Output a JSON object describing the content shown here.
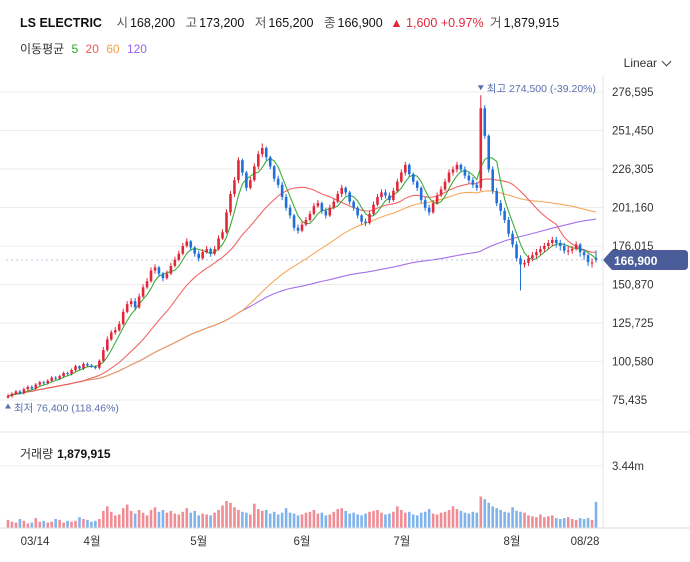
{
  "header": {
    "name": "LS ELECTRIC",
    "open_label": "시",
    "open": "168,200",
    "high_label": "고",
    "high": "173,200",
    "low_label": "저",
    "low": "165,200",
    "close_label": "종",
    "close": "166,900",
    "change": "1,600",
    "change_pct": "+0.97%",
    "volume_label": "거",
    "volume": "1,879,915"
  },
  "ma_legend": {
    "label": "이동평균",
    "items": [
      {
        "period": "5",
        "color": "#27a527"
      },
      {
        "period": "20",
        "color": "#ef5757"
      },
      {
        "period": "60",
        "color": "#f5a04a"
      },
      {
        "period": "120",
        "color": "#9a62e8"
      }
    ]
  },
  "scale_button": "Linear",
  "volume_panel": {
    "title": "거래량",
    "value": "1,879,915",
    "axis_max": "3.44m"
  },
  "colors": {
    "up": "#e0283b",
    "down": "#1e6fd9",
    "up_volume": "#f08c94",
    "down_volume": "#7fb3ec",
    "last_price_bg": "#4a5d9a"
  },
  "chart_data": {
    "type": "candlestick",
    "y_ticks": [
      276595,
      251450,
      226305,
      201160,
      176015,
      150870,
      125725,
      100580,
      75435
    ],
    "y_tick_labels": [
      "276,595",
      "251,450",
      "226,305",
      "201,160",
      "176,015",
      "150,870",
      "125,725",
      "100,580",
      "75,435"
    ],
    "x_labels": [
      "03/14",
      "4월",
      "5월",
      "6월",
      "7월",
      "8월",
      "08/28"
    ],
    "last_price": 166900,
    "last_price_label": "166,900",
    "max_annotation": "최고 274,500 (-39.20%)",
    "min_annotation": "최저 76,400 (118.46%)",
    "max_value": 274500,
    "min_value": 76400,
    "closes": [
      78000,
      79500,
      81000,
      80000,
      82500,
      84000,
      83000,
      85500,
      87000,
      86500,
      88000,
      90000,
      89500,
      91000,
      93000,
      92500,
      95000,
      97500,
      96000,
      99000,
      98000,
      97000,
      96500,
      101000,
      108000,
      115000,
      119500,
      121000,
      125000,
      133000,
      138000,
      140000,
      136000,
      143000,
      149000,
      153000,
      160000,
      162000,
      158000,
      155000,
      158000,
      163000,
      167000,
      171000,
      176000,
      179000,
      175000,
      171000,
      168000,
      172000,
      174000,
      171000,
      174000,
      181000,
      185000,
      198000,
      210000,
      219000,
      232000,
      224000,
      214000,
      219000,
      228000,
      236000,
      240000,
      234000,
      228000,
      220000,
      216000,
      208000,
      201000,
      196000,
      188000,
      186000,
      190000,
      193000,
      197000,
      202000,
      204000,
      199000,
      196000,
      201000,
      205000,
      210000,
      214000,
      211000,
      205000,
      201000,
      196000,
      192000,
      191000,
      197000,
      203000,
      208000,
      211000,
      209000,
      206000,
      212000,
      218000,
      224000,
      229000,
      223000,
      218000,
      214000,
      206000,
      201000,
      198000,
      204000,
      209000,
      213000,
      218000,
      224000,
      226000,
      229000,
      226000,
      222000,
      219000,
      216000,
      214000,
      266000,
      248000,
      226000,
      212000,
      204000,
      199000,
      193000,
      184000,
      177000,
      168000,
      164000,
      165000,
      168000,
      170000,
      172000,
      174000,
      176000,
      178000,
      180000,
      178000,
      176000,
      173000,
      173000,
      174000,
      177000,
      172000,
      170000,
      165500,
      165300,
      166900
    ],
    "opens": [
      77000,
      78000,
      79500,
      81000,
      80000,
      82500,
      84000,
      83000,
      85500,
      87000,
      86500,
      88000,
      90000,
      89500,
      91000,
      93000,
      92500,
      95000,
      97500,
      96000,
      99000,
      98000,
      97000,
      96500,
      101000,
      108000,
      115000,
      119500,
      121000,
      125000,
      133000,
      138000,
      140000,
      136000,
      143000,
      149000,
      153000,
      160000,
      162000,
      158000,
      155000,
      158000,
      163000,
      167000,
      171000,
      176000,
      179000,
      175000,
      171000,
      168000,
      172000,
      174000,
      171000,
      174000,
      181000,
      185000,
      198000,
      210000,
      219000,
      232000,
      224000,
      214000,
      219000,
      228000,
      236000,
      240000,
      234000,
      228000,
      220000,
      216000,
      208000,
      201000,
      196000,
      188000,
      186000,
      190000,
      193000,
      197000,
      202000,
      204000,
      199000,
      196000,
      201000,
      205000,
      210000,
      214000,
      211000,
      205000,
      201000,
      196000,
      192000,
      191000,
      197000,
      203000,
      208000,
      211000,
      209000,
      206000,
      212000,
      218000,
      224000,
      229000,
      223000,
      218000,
      214000,
      206000,
      201000,
      198000,
      204000,
      209000,
      213000,
      218000,
      224000,
      226000,
      229000,
      226000,
      222000,
      219000,
      216000,
      214000,
      266000,
      248000,
      226000,
      212000,
      204000,
      199000,
      193000,
      184000,
      177000,
      168000,
      164000,
      165000,
      168000,
      170000,
      172000,
      174000,
      176000,
      178000,
      180000,
      178000,
      176000,
      173000,
      173000,
      174000,
      177000,
      172000,
      170000,
      165300,
      168200
    ],
    "highs": [
      79500,
      80500,
      82000,
      82000,
      83500,
      85000,
      85000,
      86500,
      88000,
      88000,
      89000,
      91000,
      91000,
      92000,
      94000,
      94000,
      96000,
      98500,
      98000,
      100000,
      100000,
      99000,
      98000,
      102000,
      110000,
      117000,
      121000,
      123000,
      127000,
      135000,
      140000,
      142000,
      142000,
      145000,
      151000,
      155000,
      162000,
      164000,
      163000,
      159000,
      160000,
      165000,
      169000,
      173000,
      178000,
      181000,
      180000,
      176000,
      173000,
      174000,
      176000,
      175000,
      176000,
      183000,
      187000,
      200000,
      212000,
      221000,
      234000,
      233000,
      225000,
      221000,
      230000,
      238000,
      243000,
      241000,
      235000,
      229000,
      222000,
      218000,
      210000,
      203000,
      197000,
      190000,
      192000,
      195000,
      199000,
      204000,
      206000,
      205000,
      201000,
      203000,
      207000,
      212000,
      216000,
      215000,
      212000,
      206000,
      202000,
      197000,
      194000,
      199000,
      205000,
      210000,
      213000,
      213000,
      211000,
      214000,
      220000,
      226000,
      231000,
      230000,
      224000,
      219000,
      215000,
      208000,
      203000,
      206000,
      211000,
      215000,
      220000,
      226000,
      228000,
      231000,
      230000,
      228000,
      224000,
      221000,
      218000,
      274500,
      268000,
      249000,
      228000,
      214000,
      206000,
      201000,
      195000,
      186000,
      179000,
      170000,
      167000,
      170000,
      172000,
      174000,
      176000,
      178000,
      180000,
      182000,
      182000,
      180000,
      178000,
      176000,
      176000,
      179000,
      178000,
      174000,
      171000,
      168000,
      173200
    ],
    "lows": [
      76400,
      77000,
      78500,
      79000,
      79000,
      81500,
      82000,
      82000,
      84500,
      85500,
      85500,
      87000,
      88500,
      88500,
      90000,
      91500,
      91500,
      94000,
      95000,
      95000,
      97000,
      96500,
      95500,
      95500,
      100000,
      107000,
      114000,
      118000,
      120000,
      124000,
      132000,
      136000,
      134000,
      135000,
      142000,
      148000,
      152000,
      158000,
      156000,
      153000,
      154000,
      157000,
      162000,
      166000,
      170000,
      175000,
      173000,
      169000,
      166000,
      167000,
      171000,
      169000,
      170000,
      173000,
      180000,
      184000,
      196000,
      208000,
      217000,
      222000,
      212000,
      213000,
      218000,
      226000,
      234000,
      232000,
      226000,
      218000,
      214000,
      206000,
      199000,
      194000,
      186000,
      184000,
      185000,
      189000,
      192000,
      196000,
      201000,
      197000,
      194000,
      195000,
      200000,
      204000,
      208000,
      209000,
      203000,
      199000,
      194000,
      190000,
      189000,
      190000,
      196000,
      202000,
      206000,
      207000,
      204000,
      205000,
      211000,
      217000,
      222000,
      221000,
      216000,
      212000,
      204000,
      199000,
      196000,
      197000,
      203000,
      208000,
      212000,
      217000,
      222000,
      224000,
      224000,
      220000,
      217000,
      214000,
      212000,
      212000,
      246000,
      224000,
      210000,
      202000,
      196000,
      191000,
      182000,
      175000,
      166000,
      147000,
      162000,
      163000,
      166000,
      168000,
      170000,
      172000,
      174000,
      176000,
      175000,
      173000,
      171000,
      170000,
      171000,
      173000,
      169000,
      167000,
      163000,
      162000,
      165200
    ],
    "volumes": [
      0.45,
      0.35,
      0.3,
      0.5,
      0.4,
      0.25,
      0.3,
      0.55,
      0.35,
      0.4,
      0.3,
      0.35,
      0.5,
      0.45,
      0.3,
      0.4,
      0.35,
      0.4,
      0.6,
      0.5,
      0.45,
      0.35,
      0.4,
      0.5,
      0.95,
      1.2,
      0.9,
      0.7,
      0.75,
      1.1,
      1.3,
      0.95,
      0.8,
      1.0,
      0.85,
      0.7,
      1.0,
      1.15,
      0.9,
      1.0,
      0.85,
      0.95,
      0.8,
      0.75,
      0.9,
      1.1,
      0.85,
      0.95,
      0.7,
      0.8,
      0.75,
      0.7,
      0.85,
      1.0,
      1.25,
      1.5,
      1.4,
      1.15,
      1.0,
      0.9,
      0.85,
      0.75,
      1.35,
      1.05,
      0.95,
      1.0,
      0.8,
      0.9,
      0.75,
      0.85,
      1.1,
      0.85,
      0.8,
      0.7,
      0.75,
      0.85,
      0.9,
      1.0,
      0.8,
      0.85,
      0.7,
      0.75,
      0.9,
      1.05,
      1.1,
      0.95,
      0.8,
      0.85,
      0.75,
      0.7,
      0.8,
      0.9,
      0.95,
      1.0,
      0.85,
      0.75,
      0.8,
      0.9,
      1.2,
      1.0,
      0.85,
      0.9,
      0.75,
      0.7,
      0.85,
      0.9,
      1.05,
      0.8,
      0.75,
      0.85,
      0.9,
      1.0,
      1.2,
      1.05,
      0.95,
      0.85,
      0.8,
      0.9,
      0.85,
      1.75,
      1.6,
      1.4,
      1.2,
      1.1,
      1.0,
      0.9,
      0.85,
      1.15,
      0.95,
      0.9,
      0.85,
      0.7,
      0.65,
      0.6,
      0.75,
      0.6,
      0.65,
      0.7,
      0.55,
      0.5,
      0.55,
      0.6,
      0.5,
      0.45,
      0.55,
      0.5,
      0.55,
      0.45,
      1.45
    ]
  }
}
